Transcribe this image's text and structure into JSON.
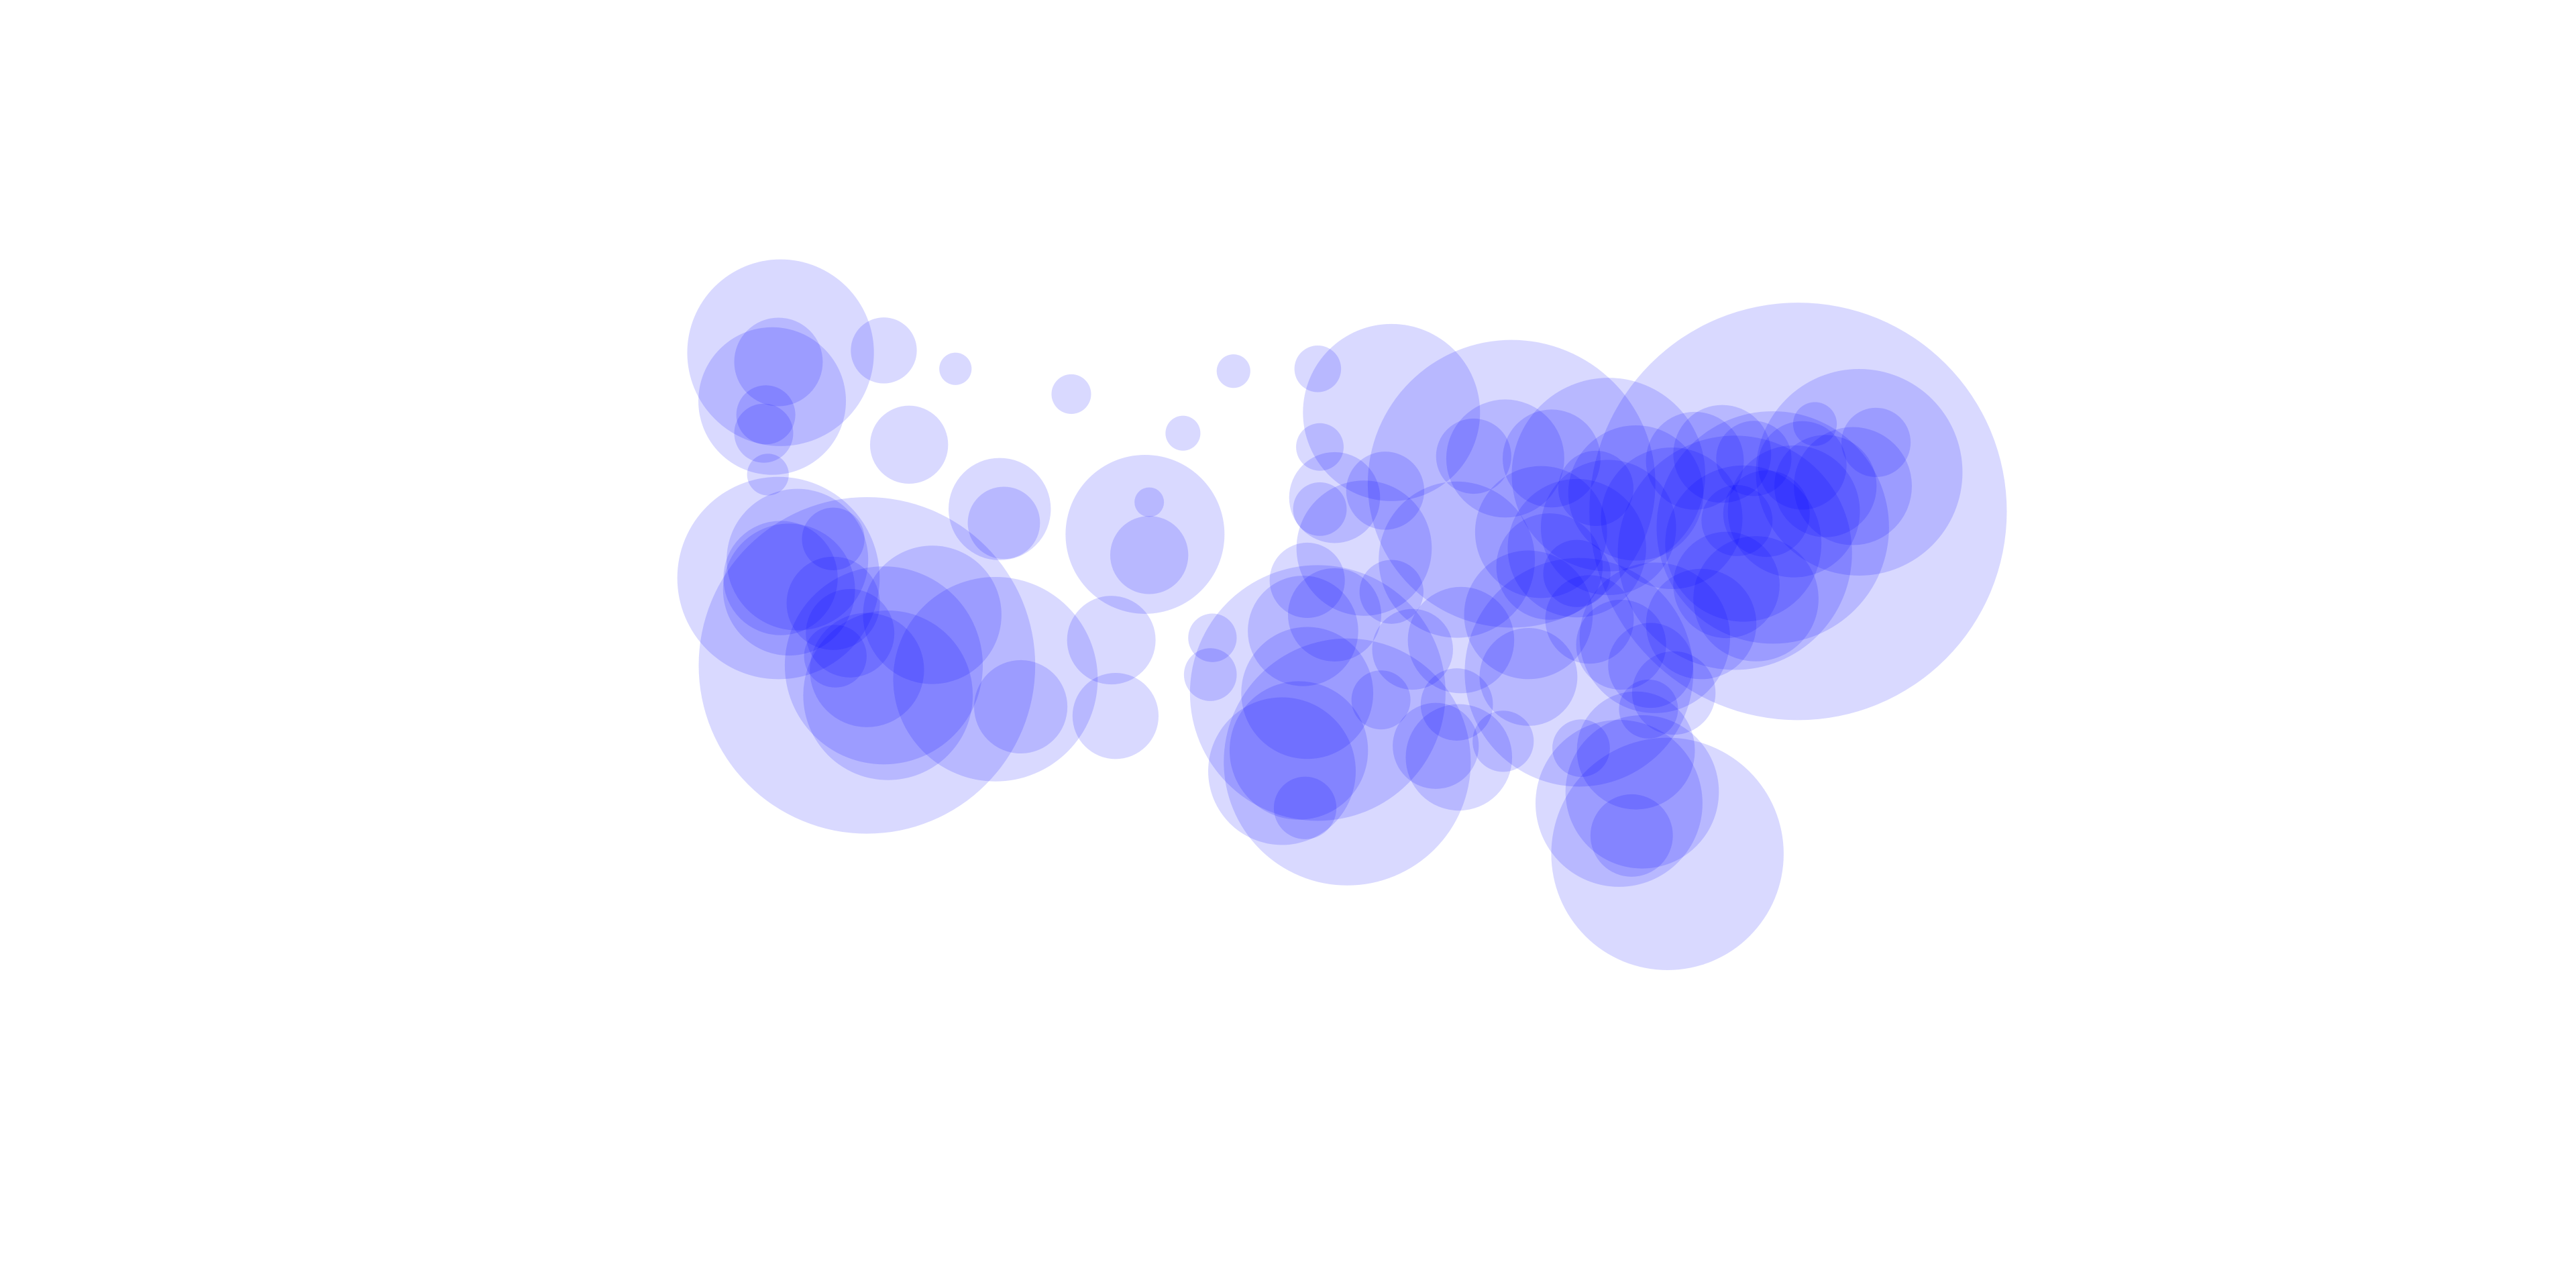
{
  "chart_data": {
    "type": "bubble",
    "x": [
      -122.3,
      -122.4,
      -122.7,
      -117.4,
      -116.2,
      -123.1,
      -123.0,
      -122.9,
      -121.5,
      -122.4,
      -121.9,
      -122.3,
      -119.8,
      -119.0,
      -118.2,
      -118.2,
      -117.4,
      -117.2,
      -119.7,
      -115.1,
      -119.8,
      -112.1,
      -110.9,
      -111.9,
      -111.7,
      -106.6,
      -106.4,
      -105.0,
      -104.8,
      -104.8,
      -108.5,
      -114.0,
      -100.8,
      -96.8,
      -96.7,
      -103.2,
      -96.0,
      -96.7,
      -97.3,
      -94.6,
      -97.5,
      -96.0,
      -96.8,
      -97.3,
      -97.7,
      -98.5,
      -95.4,
      -97.4,
      -101.9,
      -101.8,
      -93.3,
      -93.6,
      -87.9,
      -89.4,
      -87.6,
      -83.0,
      -85.7,
      -86.2,
      -83.0,
      -81.7,
      -84.5,
      -80.0,
      -90.2,
      -90.0,
      -86.8,
      -85.8,
      -92.3,
      -90.1,
      -91.2,
      -90.2,
      -86.8,
      -84.4,
      -80.8,
      -78.6,
      -77.4,
      -76.0,
      -77.0,
      -76.6,
      -75.2,
      -74.0,
      -74.2,
      -72.7,
      -71.4,
      -71.1,
      -73.8,
      -78.9,
      -77.6,
      -76.1,
      -70.3,
      -73.2,
      -81.7,
      -81.4,
      -82.5,
      -80.2,
      -79.9,
      -81.0,
      -81.1,
      -83.9,
      -84.3,
      -88.0,
      -93.8,
      -93.3,
      -84.5,
      -83.6,
      -76.9,
      -75.5,
      -82.4,
      -81.9
    ],
    "y": [
      47.6,
      47.2,
      45.5,
      47.7,
      43.6,
      44.1,
      44.9,
      42.3,
      38.6,
      37.8,
      37.3,
      37.8,
      36.7,
      35.4,
      34.0,
      33.8,
      34.0,
      32.7,
      34.4,
      36.2,
      39.5,
      33.4,
      32.2,
      40.8,
      40.2,
      35.1,
      31.8,
      39.7,
      38.8,
      41.1,
      45.8,
      46.9,
      46.8,
      46.9,
      43.5,
      44.1,
      41.3,
      40.8,
      37.7,
      39.1,
      35.5,
      36.2,
      32.8,
      32.8,
      30.3,
      29.4,
      29.8,
      27.8,
      33.6,
      35.2,
      45.0,
      41.6,
      43.0,
      43.1,
      41.9,
      42.3,
      43.0,
      39.8,
      40.0,
      41.5,
      39.1,
      40.4,
      38.6,
      35.1,
      36.2,
      38.3,
      34.7,
      30.0,
      30.5,
      32.3,
      33.5,
      33.7,
      35.2,
      35.8,
      37.5,
      36.9,
      38.9,
      39.3,
      40.0,
      40.7,
      40.7,
      41.8,
      41.8,
      42.4,
      42.7,
      42.9,
      43.2,
      43.0,
      43.7,
      44.5,
      30.3,
      28.5,
      28.0,
      25.8,
      32.8,
      34.0,
      32.1,
      36.0,
      30.4,
      30.7,
      32.5,
      37.2,
      38.0,
      41.7,
      40.3,
      40.6,
      34.9,
      26.6
    ],
    "sizes": [
      4000,
      900,
      2500,
      500,
      700,
      400,
      400,
      200,
      2300,
      4700,
      2000,
      1500,
      1000,
      900,
      13000,
      1500,
      4500,
      3300,
      450,
      2200,
      450,
      4800,
      1000,
      1200,
      600,
      900,
      850,
      2900,
      700,
      100,
      180,
      120,
      130,
      250,
      260,
      140,
      950,
      330,
      650,
      2100,
      1400,
      1000,
      7500,
      2000,
      2200,
      2500,
      7000,
      450,
      320,
      270,
      3600,
      700,
      1600,
      650,
      9500,
      4300,
      1100,
      2000,
      2100,
      2100,
      2200,
      2300,
      2800,
      1300,
      1900,
      1300,
      750,
      1300,
      850,
      600,
      1100,
      6000,
      2600,
      1400,
      1300,
      1800,
      6300,
      2800,
      6200,
      20000,
      2000,
      1200,
      1600,
      4900,
      900,
      1100,
      1100,
      650,
      550,
      220,
      1600,
      2700,
      3200,
      6200,
      800,
      830,
      400,
      900,
      380,
      430,
      400,
      470,
      520,
      650,
      580,
      860,
      930,
      780
    ],
    "color": "#0000ff",
    "opacity": 0.15,
    "xlim": [
      -127,
      -65
    ],
    "ylim": [
      22,
      52
    ]
  }
}
